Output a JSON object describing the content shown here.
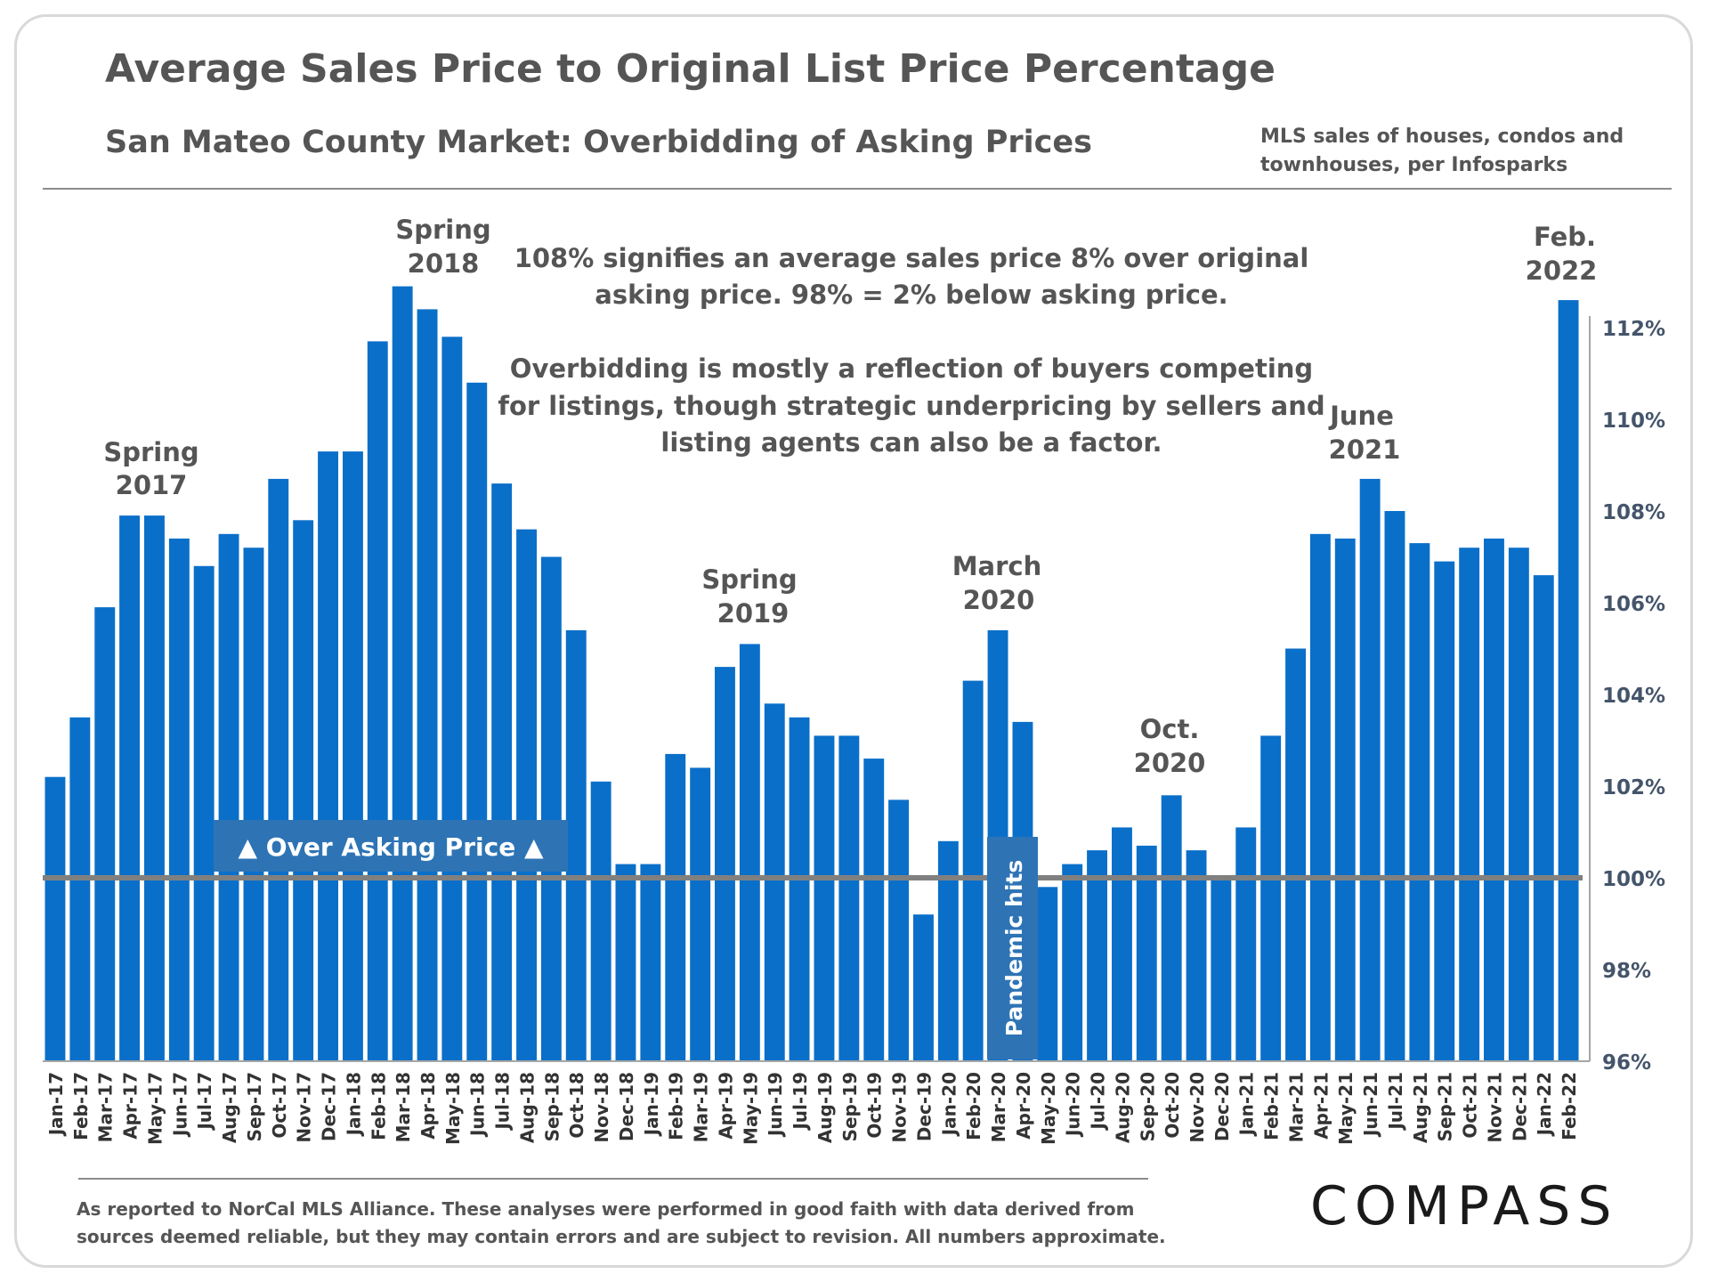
{
  "header": {
    "title": "Average Sales Price to Original List Price Percentage",
    "subtitle": "San Mateo County Market: Overbidding of Asking Prices",
    "source_line1": "MLS sales of houses, condos and",
    "source_line2": "townhouses, per Infosparks"
  },
  "footer": {
    "note_line1": "As reported to NorCal MLS Alliance. These analyses were performed in good faith with data derived from",
    "note_line2": "sources deemed reliable, but they may contain errors and are subject to revision. All numbers approximate.",
    "logo": "COMPASS"
  },
  "chart_data": {
    "type": "bar",
    "categories": [
      "Jan-17",
      "Feb-17",
      "Mar-17",
      "Apr-17",
      "May-17",
      "Jun-17",
      "Jul-17",
      "Aug-17",
      "Sep-17",
      "Oct-17",
      "Nov-17",
      "Dec-17",
      "Jan-18",
      "Feb-18",
      "Mar-18",
      "Apr-18",
      "May-18",
      "Jun-18",
      "Jul-18",
      "Aug-18",
      "Sep-18",
      "Oct-18",
      "Nov-18",
      "Dec-18",
      "Jan-19",
      "Feb-19",
      "Mar-19",
      "Apr-19",
      "May-19",
      "Jun-19",
      "Jul-19",
      "Aug-19",
      "Sep-19",
      "Oct-19",
      "Nov-19",
      "Dec-19",
      "Jan-20",
      "Feb-20",
      "Mar-20",
      "Apr-20",
      "May-20",
      "Jun-20",
      "Jul-20",
      "Aug-20",
      "Sep-20",
      "Oct-20",
      "Nov-20",
      "Dec-20",
      "Jan-21",
      "Feb-21",
      "Mar-21",
      "Apr-21",
      "May-21",
      "Jun-21",
      "Jul-21",
      "Aug-21",
      "Sep-21",
      "Oct-21",
      "Nov-21",
      "Dec-21",
      "Jan-22",
      "Feb-22"
    ],
    "values": [
      102.2,
      103.5,
      105.9,
      107.9,
      107.9,
      107.4,
      106.8,
      107.5,
      107.2,
      108.7,
      107.8,
      109.3,
      109.3,
      111.7,
      112.9,
      112.4,
      111.8,
      110.8,
      108.6,
      107.6,
      107.0,
      105.4,
      102.1,
      100.3,
      100.3,
      102.7,
      102.4,
      104.6,
      105.1,
      103.8,
      103.5,
      103.1,
      103.1,
      102.6,
      101.7,
      99.2,
      100.8,
      104.3,
      105.4,
      103.4,
      99.8,
      100.3,
      100.6,
      101.1,
      100.7,
      101.8,
      100.6,
      100.0,
      101.1,
      103.1,
      105.0,
      107.5,
      107.4,
      108.7,
      108.0,
      107.3,
      106.9,
      107.2,
      107.4,
      107.2,
      106.6,
      112.6
    ],
    "ylim": [
      96,
      113
    ],
    "yticks": [
      "96%",
      "98%",
      "100%",
      "102%",
      "104%",
      "106%",
      "108%",
      "110%",
      "112%"
    ],
    "ytick_values": [
      96,
      98,
      100,
      102,
      104,
      106,
      108,
      110,
      112
    ],
    "reference_value": 100,
    "bar_color": "#0a6fc9",
    "reference_color": "#808080",
    "annotations": {
      "spring2017": [
        "Spring",
        "2017"
      ],
      "spring2018": [
        "Spring",
        "2018"
      ],
      "spring2019": [
        "Spring",
        "2019"
      ],
      "march2020": [
        "March",
        "2020"
      ],
      "oct2020": [
        "Oct.",
        "2020"
      ],
      "june2021": [
        "June",
        "2021"
      ],
      "feb2022": [
        "Feb.",
        "2022"
      ],
      "note1_line1": "108% signifies an average sales price 8% over original",
      "note1_line2": "asking price. 98% = 2% below asking price.",
      "note2_line1": "Overbidding is mostly a reflection of buyers competing",
      "note2_line2": "for listings, though strategic underpricing by sellers and",
      "note2_line3": "listing agents can also be a factor.",
      "over_asking": "▲ Over Asking Price ▲",
      "pandemic": "Pandemic hits"
    }
  }
}
